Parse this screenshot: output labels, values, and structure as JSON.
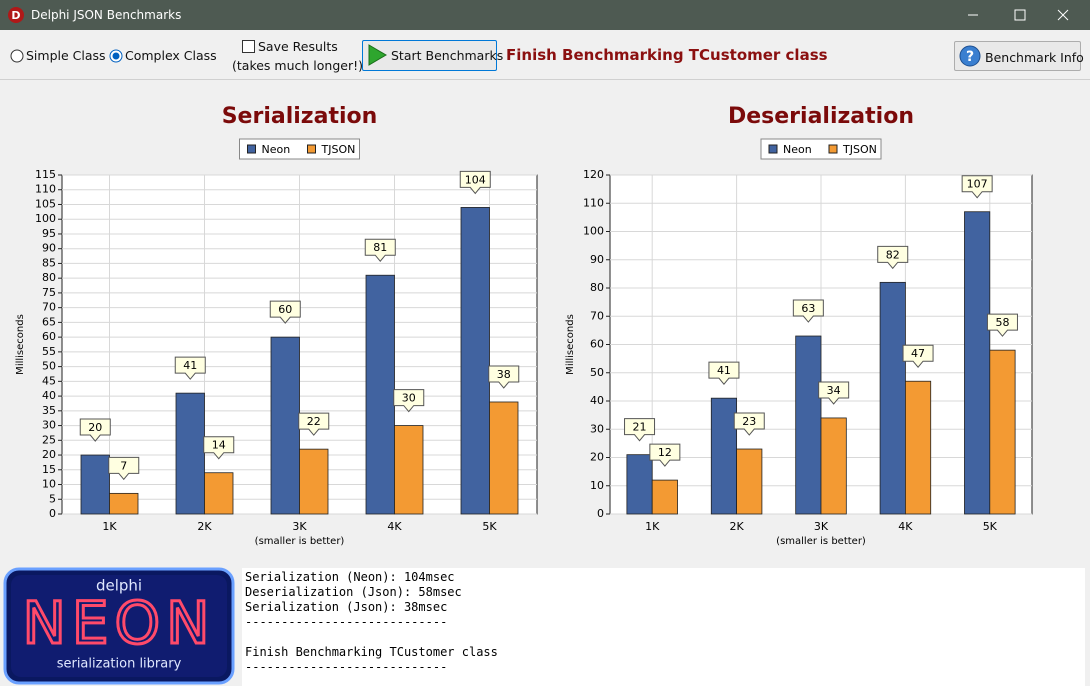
{
  "window": {
    "title": "Delphi JSON Benchmarks"
  },
  "toolbar": {
    "options": [
      "Simple Class",
      "Complex Class"
    ],
    "save_results": "Save Results",
    "save_note": "(takes much longer!)",
    "start_button": "Start Benchmarks",
    "status": "Finish Benchmarking TCustomer class",
    "info_button": "Benchmark Info"
  },
  "chart_data": [
    {
      "type": "bar",
      "title": "Serialization",
      "y_label": "Milliseconds",
      "x_label": "(smaller is better)",
      "categories": [
        "1K",
        "2K",
        "3K",
        "4K",
        "5K"
      ],
      "series": [
        {
          "name": "Neon",
          "color": "#4163a0",
          "values": [
            20,
            41,
            60,
            81,
            104
          ]
        },
        {
          "name": "TJSON",
          "color": "#f39a33",
          "values": [
            7,
            14,
            22,
            30,
            38
          ]
        }
      ],
      "ylim": [
        0,
        115
      ],
      "yticks": [
        0,
        5,
        10,
        15,
        20,
        25,
        30,
        35,
        40,
        45,
        50,
        55,
        60,
        65,
        70,
        75,
        80,
        85,
        90,
        95,
        100,
        105,
        110,
        115
      ],
      "grid": true,
      "legend": "top"
    },
    {
      "type": "bar",
      "title": "Deserialization",
      "y_label": "Milliseconds",
      "x_label": "(smaller is better)",
      "categories": [
        "1K",
        "2K",
        "3K",
        "4K",
        "5K"
      ],
      "series": [
        {
          "name": "Neon",
          "color": "#4163a0",
          "values": [
            21,
            41,
            63,
            82,
            107
          ]
        },
        {
          "name": "TJSON",
          "color": "#f39a33",
          "values": [
            12,
            23,
            34,
            47,
            58
          ]
        }
      ],
      "ylim": [
        0,
        120
      ],
      "yticks": [
        0,
        10,
        20,
        30,
        40,
        50,
        60,
        70,
        80,
        90,
        100,
        110,
        120
      ],
      "grid": true,
      "legend": "top"
    }
  ],
  "log": {
    "blocks": [
      [
        "Serialization (Neon): 104msec",
        "Deserialization (Json): 58msec",
        "Serialization (Json): 38msec",
        "----------------------------"
      ],
      [
        "Finish Benchmarking TCustomer class",
        "----------------------------"
      ]
    ]
  },
  "logo": {
    "top": "delphi",
    "main": "NEON",
    "bottom": "serialization library"
  }
}
